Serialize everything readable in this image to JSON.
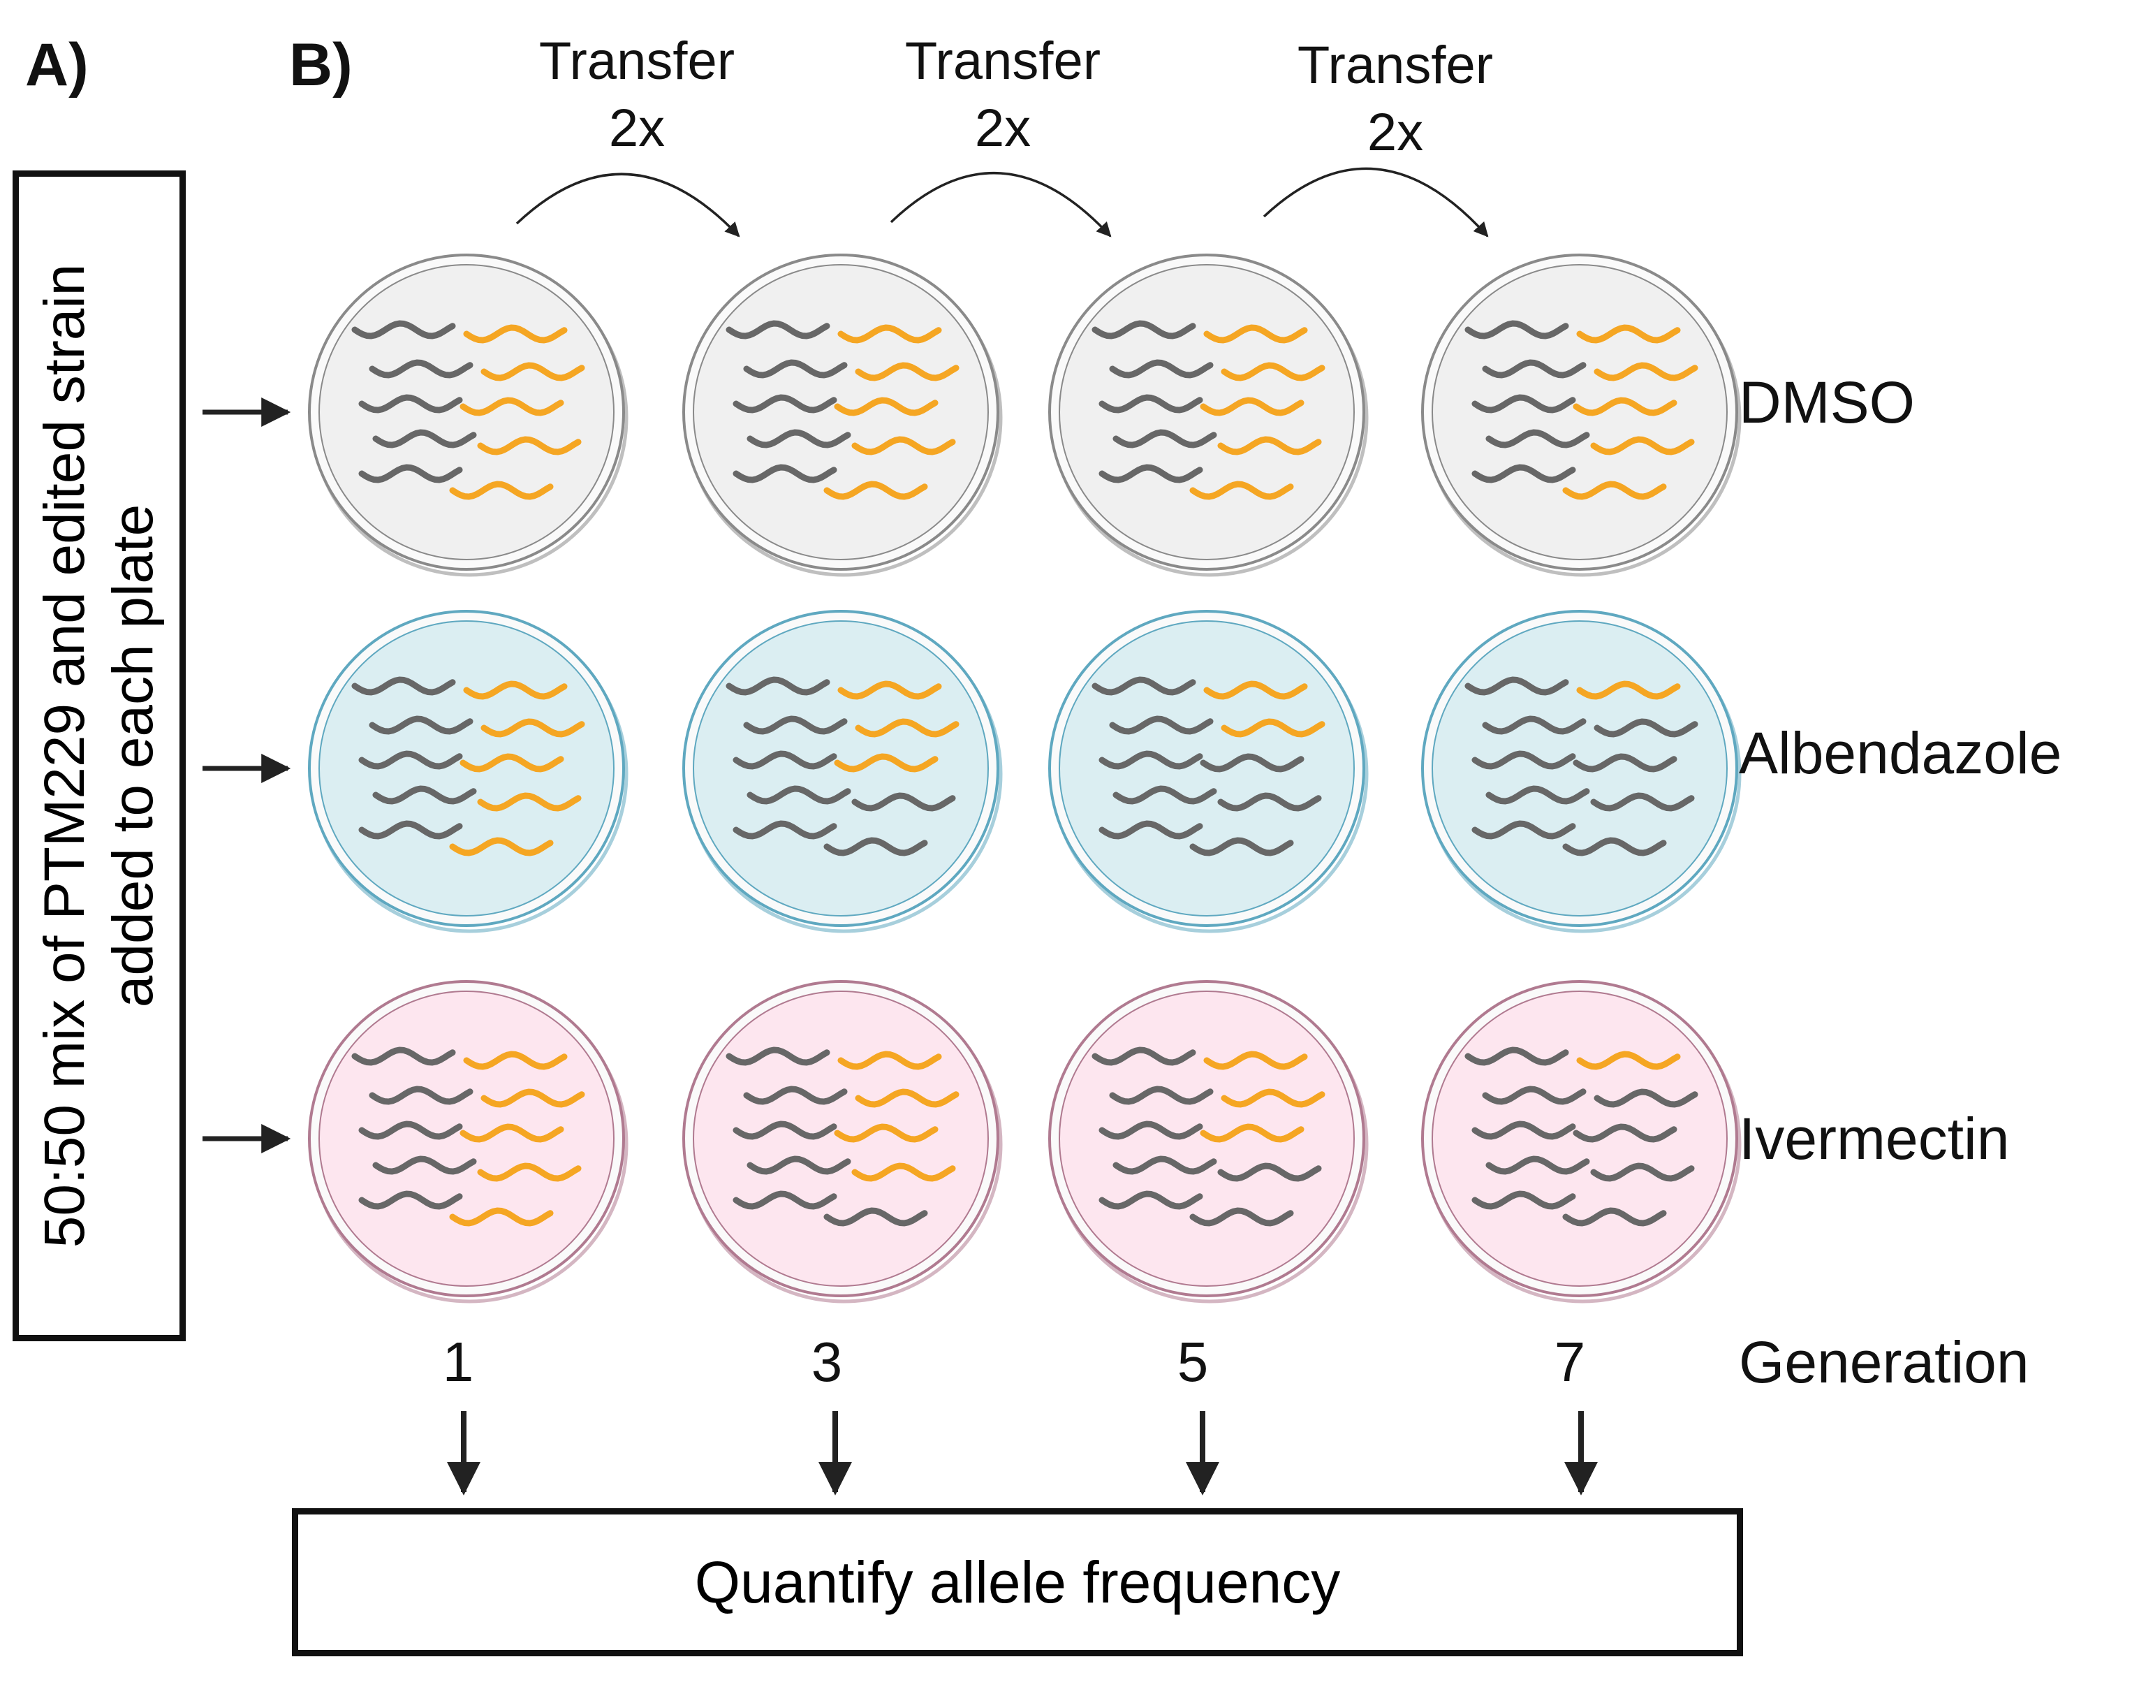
{
  "panels": {
    "a": "A)",
    "b": "B)"
  },
  "mix_box": {
    "line1": "50:50 mix of PTM229 and edited strain",
    "line2": "added to each plate"
  },
  "transfers": [
    {
      "line1": "Transfer",
      "line2": "2x"
    },
    {
      "line1": "Transfer",
      "line2": "2x"
    },
    {
      "line1": "Transfer",
      "line2": "2x"
    }
  ],
  "rows": [
    {
      "label": "DMSO",
      "fill": "#f0f0f0",
      "rim": "#8a8a8a",
      "yellow_counts": [
        5,
        5,
        5,
        5
      ]
    },
    {
      "label": "Albendazole",
      "fill": "#dbeef2",
      "rim": "#5fa8c0",
      "yellow_counts": [
        5,
        3,
        2,
        1
      ]
    },
    {
      "label": "Ivermectin",
      "fill": "#fde6ef",
      "rim": "#b07a90",
      "yellow_counts": [
        5,
        4,
        3,
        1
      ]
    }
  ],
  "generation": {
    "label": "Generation",
    "values": [
      "1",
      "3",
      "5",
      "7"
    ]
  },
  "quantify": "Quantify allele frequency",
  "colors": {
    "worm_mutant": "#f5a623",
    "worm_wildtype": "#676767",
    "arrow": "#222222"
  }
}
